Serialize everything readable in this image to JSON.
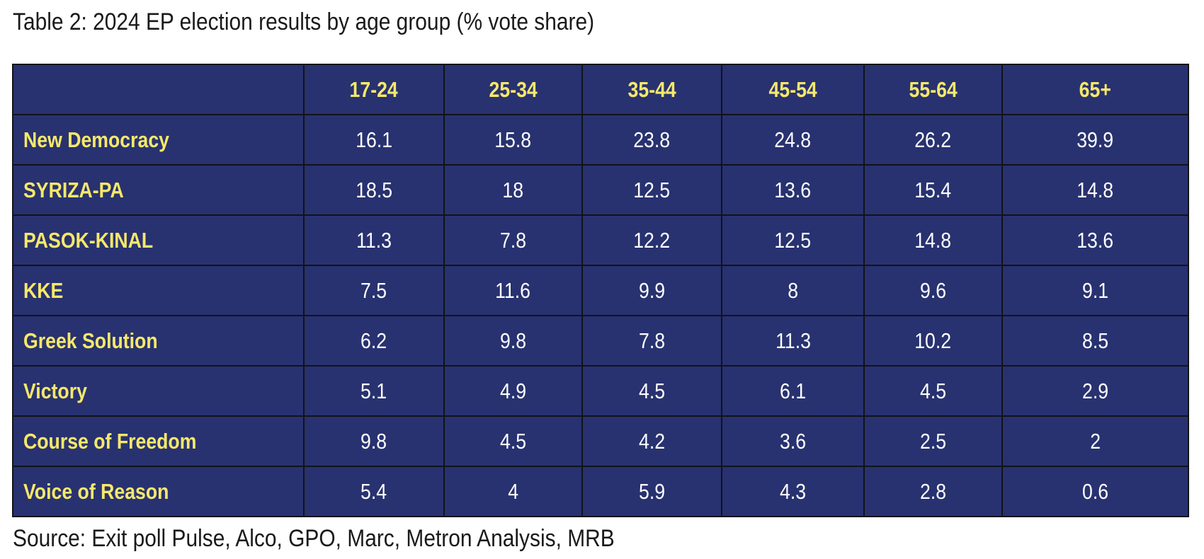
{
  "caption": "Table 2: 2024 EP election results by age group (% vote share)",
  "source": "Source: Exit poll Pulse, Alco, GPO, Marc, Metron Analysis, MRB",
  "colors": {
    "table_background": "#283270",
    "header_text": "#f7e86a",
    "value_text": "#ffffff",
    "grid_lines": "#111318"
  },
  "chart_data": {
    "type": "table",
    "title": "Table 2: 2024 EP election results by age group (% vote share)",
    "columns": [
      "17-24",
      "25-34",
      "35-44",
      "45-54",
      "55-64",
      "65+"
    ],
    "rows": [
      {
        "name": "New Democracy",
        "values": [
          "16.1",
          "15.8",
          "23.8",
          "24.8",
          "26.2",
          "39.9"
        ]
      },
      {
        "name": "SYRIZA-PA",
        "values": [
          "18.5",
          "18",
          "12.5",
          "13.6",
          "15.4",
          "14.8"
        ]
      },
      {
        "name": "PASOK-KINAL",
        "values": [
          "11.3",
          "7.8",
          "12.2",
          "12.5",
          "14.8",
          "13.6"
        ]
      },
      {
        "name": "KKE",
        "values": [
          "7.5",
          "11.6",
          "9.9",
          "8",
          "9.6",
          "9.1"
        ]
      },
      {
        "name": "Greek Solution",
        "values": [
          "6.2",
          "9.8",
          "7.8",
          "11.3",
          "10.2",
          "8.5"
        ]
      },
      {
        "name": "Victory",
        "values": [
          "5.1",
          "4.9",
          "4.5",
          "6.1",
          "4.5",
          "2.9"
        ]
      },
      {
        "name": "Course of Freedom",
        "values": [
          "9.8",
          "4.5",
          "4.2",
          "3.6",
          "2.5",
          "2"
        ]
      },
      {
        "name": "Voice of Reason",
        "values": [
          "5.4",
          "4",
          "5.9",
          "4.3",
          "2.8",
          "0.6"
        ]
      }
    ]
  }
}
